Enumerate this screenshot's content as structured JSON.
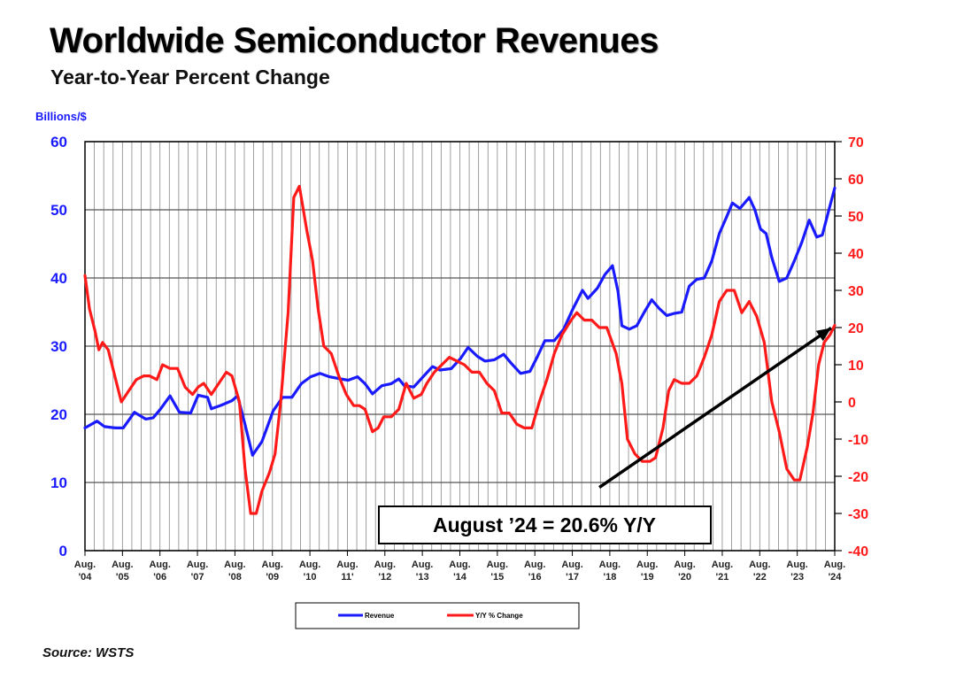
{
  "page": {
    "title": "Worldwide Semiconductor Revenues",
    "subtitle": "Year-to-Year Percent Change",
    "left_axis_label": "Billions/$",
    "source": "Source: WSTS"
  },
  "chart_data": {
    "type": "line",
    "title": "Worldwide Semiconductor Revenues",
    "subtitle": "Year-to-Year Percent Change",
    "ylabel_left": "Billions/$",
    "ylim_left": [
      0,
      60
    ],
    "yticks_left": [
      "0",
      "10",
      "20",
      "30",
      "40",
      "50",
      "60"
    ],
    "ylim_right": [
      -40,
      70
    ],
    "yticks_right": [
      "-40",
      "-30",
      "-20",
      "-10",
      "0",
      "10",
      "20",
      "30",
      "40",
      "50",
      "60",
      "70"
    ],
    "x_range": [
      2004.58,
      2024.58
    ],
    "xtick_top": [
      "Aug.",
      "Aug.",
      "Aug.",
      "Aug.",
      "Aug.",
      "Aug.",
      "Aug.",
      "Aug.",
      "Aug.",
      "Aug.",
      "Aug.",
      "Aug.",
      "Aug.",
      "Aug.",
      "Aug.",
      "Aug.",
      "Aug.",
      "Aug.",
      "Aug.",
      "Aug.",
      "Aug."
    ],
    "xtick_bottom": [
      "'04",
      "'05",
      "'06",
      "'07",
      "'08",
      "'09",
      "'10",
      "11'",
      "'12",
      "'13",
      "'14",
      "'15",
      "'16",
      "'17",
      "'18",
      "'19",
      "'20",
      "'21",
      "'22",
      "'23",
      "'24"
    ],
    "grid": true,
    "legend_position": "bottom-center",
    "series": [
      {
        "name": "Revenue",
        "axis": "left",
        "color": "#1a1aff",
        "points": [
          [
            2004.58,
            18
          ],
          [
            2004.9,
            19
          ],
          [
            2005.1,
            18.2
          ],
          [
            2005.4,
            18
          ],
          [
            2005.6,
            18
          ],
          [
            2005.9,
            20.3
          ],
          [
            2006.2,
            19.3
          ],
          [
            2006.4,
            19.5
          ],
          [
            2006.6,
            20.8
          ],
          [
            2006.85,
            22.7
          ],
          [
            2007.1,
            20.3
          ],
          [
            2007.4,
            20.2
          ],
          [
            2007.6,
            22.8
          ],
          [
            2007.85,
            22.5
          ],
          [
            2007.95,
            20.8
          ],
          [
            2008.2,
            21.3
          ],
          [
            2008.5,
            22
          ],
          [
            2008.65,
            22.7
          ],
          [
            2008.85,
            18.5
          ],
          [
            2009.05,
            14
          ],
          [
            2009.3,
            16
          ],
          [
            2009.6,
            20.5
          ],
          [
            2009.85,
            22.5
          ],
          [
            2010.1,
            22.5
          ],
          [
            2010.35,
            24.5
          ],
          [
            2010.6,
            25.5
          ],
          [
            2010.85,
            26
          ],
          [
            2011.1,
            25.5
          ],
          [
            2011.4,
            25.2
          ],
          [
            2011.6,
            25
          ],
          [
            2011.85,
            25.5
          ],
          [
            2012.05,
            24.5
          ],
          [
            2012.25,
            23
          ],
          [
            2012.5,
            24.2
          ],
          [
            2012.75,
            24.5
          ],
          [
            2012.95,
            25.2
          ],
          [
            2013.1,
            24.2
          ],
          [
            2013.35,
            24
          ],
          [
            2013.6,
            25.5
          ],
          [
            2013.85,
            27
          ],
          [
            2014.05,
            26.5
          ],
          [
            2014.35,
            26.7
          ],
          [
            2014.6,
            28.2
          ],
          [
            2014.8,
            29.8
          ],
          [
            2015.05,
            28.5
          ],
          [
            2015.25,
            27.8
          ],
          [
            2015.5,
            28
          ],
          [
            2015.75,
            28.8
          ],
          [
            2015.95,
            27.5
          ],
          [
            2016.2,
            26
          ],
          [
            2016.45,
            26.3
          ],
          [
            2016.65,
            28.5
          ],
          [
            2016.85,
            30.8
          ],
          [
            2017.1,
            30.8
          ],
          [
            2017.35,
            32.5
          ],
          [
            2017.6,
            35.5
          ],
          [
            2017.85,
            38.2
          ],
          [
            2018.0,
            37
          ],
          [
            2018.25,
            38.5
          ],
          [
            2018.45,
            40.5
          ],
          [
            2018.65,
            41.8
          ],
          [
            2018.8,
            38
          ],
          [
            2018.9,
            33
          ],
          [
            2019.1,
            32.5
          ],
          [
            2019.3,
            33
          ],
          [
            2019.5,
            35
          ],
          [
            2019.7,
            36.8
          ],
          [
            2019.9,
            35.5
          ],
          [
            2020.1,
            34.5
          ],
          [
            2020.3,
            34.8
          ],
          [
            2020.5,
            35
          ],
          [
            2020.7,
            38.8
          ],
          [
            2020.9,
            39.8
          ],
          [
            2021.1,
            40
          ],
          [
            2021.3,
            42.5
          ],
          [
            2021.5,
            46.5
          ],
          [
            2021.7,
            49
          ],
          [
            2021.85,
            51
          ],
          [
            2022.05,
            50.2
          ],
          [
            2022.3,
            51.8
          ],
          [
            2022.45,
            50
          ],
          [
            2022.6,
            47.2
          ],
          [
            2022.75,
            46.5
          ],
          [
            2022.9,
            43
          ],
          [
            2023.1,
            39.5
          ],
          [
            2023.3,
            40
          ],
          [
            2023.5,
            42.5
          ],
          [
            2023.7,
            45.2
          ],
          [
            2023.9,
            48.5
          ],
          [
            2024.1,
            46
          ],
          [
            2024.25,
            46.3
          ],
          [
            2024.4,
            49.5
          ],
          [
            2024.58,
            53.2
          ]
        ]
      },
      {
        "name": "Y/Y % Change",
        "axis": "right",
        "color": "#ff1a1a",
        "points": [
          [
            2004.58,
            34
          ],
          [
            2004.7,
            25
          ],
          [
            2004.85,
            19
          ],
          [
            2004.95,
            14
          ],
          [
            2005.05,
            16
          ],
          [
            2005.2,
            14
          ],
          [
            2005.4,
            6
          ],
          [
            2005.55,
            0
          ],
          [
            2005.75,
            3
          ],
          [
            2005.95,
            6
          ],
          [
            2006.15,
            7
          ],
          [
            2006.3,
            7
          ],
          [
            2006.5,
            6
          ],
          [
            2006.65,
            10
          ],
          [
            2006.85,
            9
          ],
          [
            2007.05,
            9
          ],
          [
            2007.25,
            4
          ],
          [
            2007.45,
            2
          ],
          [
            2007.6,
            4
          ],
          [
            2007.75,
            5
          ],
          [
            2007.95,
            2
          ],
          [
            2008.15,
            5
          ],
          [
            2008.35,
            8
          ],
          [
            2008.5,
            7
          ],
          [
            2008.7,
            0
          ],
          [
            2008.85,
            -18
          ],
          [
            2009.0,
            -30
          ],
          [
            2009.15,
            -30
          ],
          [
            2009.3,
            -24
          ],
          [
            2009.5,
            -19
          ],
          [
            2009.65,
            -14
          ],
          [
            2009.8,
            0
          ],
          [
            2010.0,
            24
          ],
          [
            2010.15,
            55
          ],
          [
            2010.3,
            58
          ],
          [
            2010.5,
            46
          ],
          [
            2010.65,
            38
          ],
          [
            2010.8,
            25
          ],
          [
            2010.95,
            15
          ],
          [
            2011.15,
            13
          ],
          [
            2011.35,
            7
          ],
          [
            2011.55,
            2
          ],
          [
            2011.75,
            -1
          ],
          [
            2011.9,
            -1
          ],
          [
            2012.05,
            -2
          ],
          [
            2012.25,
            -8
          ],
          [
            2012.4,
            -7
          ],
          [
            2012.55,
            -4
          ],
          [
            2012.75,
            -4
          ],
          [
            2012.95,
            -2
          ],
          [
            2013.15,
            5
          ],
          [
            2013.35,
            1
          ],
          [
            2013.55,
            2
          ],
          [
            2013.7,
            5
          ],
          [
            2013.9,
            8
          ],
          [
            2014.1,
            10
          ],
          [
            2014.3,
            12
          ],
          [
            2014.5,
            11
          ],
          [
            2014.7,
            10
          ],
          [
            2014.9,
            8
          ],
          [
            2015.1,
            8
          ],
          [
            2015.3,
            5
          ],
          [
            2015.5,
            3
          ],
          [
            2015.7,
            -3
          ],
          [
            2015.9,
            -3
          ],
          [
            2016.1,
            -6
          ],
          [
            2016.3,
            -7
          ],
          [
            2016.5,
            -7
          ],
          [
            2016.7,
            0
          ],
          [
            2016.9,
            6
          ],
          [
            2017.1,
            13
          ],
          [
            2017.3,
            18
          ],
          [
            2017.55,
            22
          ],
          [
            2017.7,
            24
          ],
          [
            2017.9,
            22
          ],
          [
            2018.1,
            22
          ],
          [
            2018.3,
            20
          ],
          [
            2018.5,
            20
          ],
          [
            2018.75,
            13
          ],
          [
            2018.9,
            5
          ],
          [
            2019.05,
            -10
          ],
          [
            2019.25,
            -14
          ],
          [
            2019.45,
            -16
          ],
          [
            2019.65,
            -16
          ],
          [
            2019.8,
            -15
          ],
          [
            2020.0,
            -7
          ],
          [
            2020.15,
            3
          ],
          [
            2020.3,
            6
          ],
          [
            2020.5,
            5
          ],
          [
            2020.7,
            5
          ],
          [
            2020.9,
            7
          ],
          [
            2021.1,
            12
          ],
          [
            2021.3,
            18
          ],
          [
            2021.5,
            27
          ],
          [
            2021.7,
            30
          ],
          [
            2021.9,
            30
          ],
          [
            2022.1,
            24
          ],
          [
            2022.3,
            27
          ],
          [
            2022.5,
            23
          ],
          [
            2022.7,
            16
          ],
          [
            2022.9,
            0
          ],
          [
            2023.1,
            -8
          ],
          [
            2023.3,
            -18
          ],
          [
            2023.5,
            -21
          ],
          [
            2023.65,
            -21
          ],
          [
            2023.85,
            -12
          ],
          [
            2024.0,
            -3
          ],
          [
            2024.15,
            10
          ],
          [
            2024.3,
            16
          ],
          [
            2024.45,
            18
          ],
          [
            2024.58,
            20.6
          ]
        ]
      }
    ],
    "annotation": {
      "text": "August ’24 = 20.6% Y/Y",
      "arrow_from": [
        2018.3,
        -23
      ],
      "arrow_to": [
        2024.58,
        20.6
      ]
    }
  }
}
